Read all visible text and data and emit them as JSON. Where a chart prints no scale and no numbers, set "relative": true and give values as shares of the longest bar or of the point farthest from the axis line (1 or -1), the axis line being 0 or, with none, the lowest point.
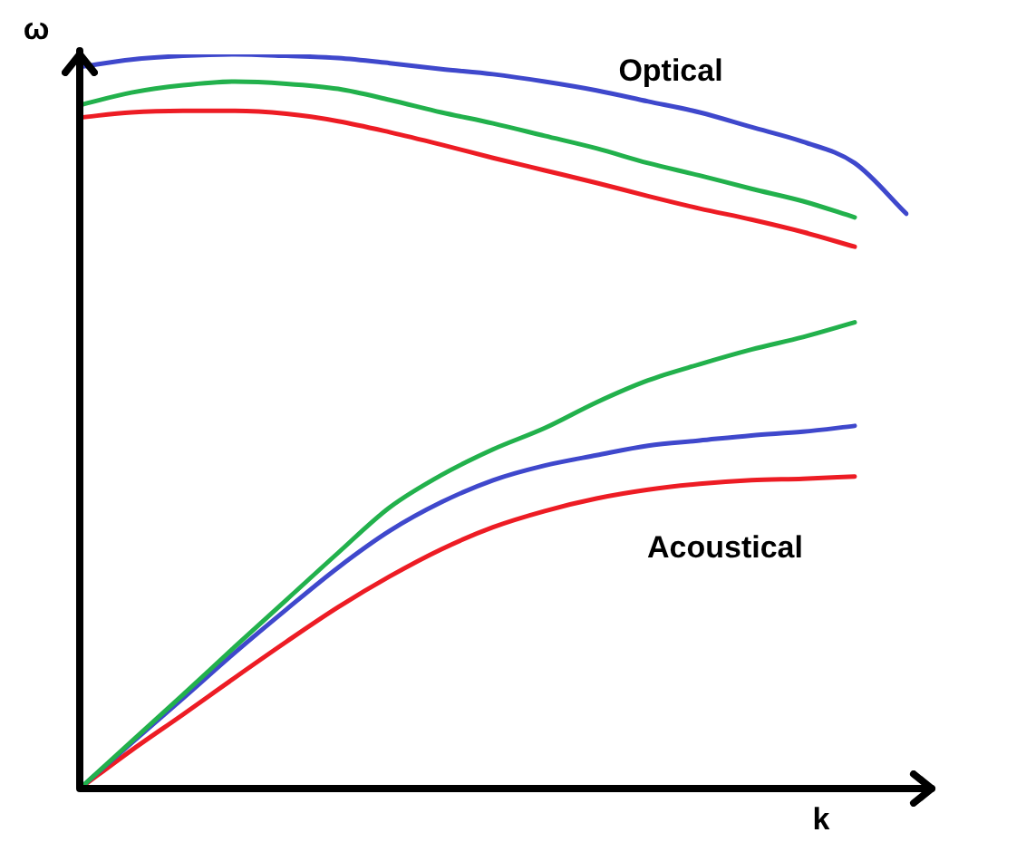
{
  "chart_data": {
    "type": "line",
    "relative": true,
    "xlabel": "k",
    "ylabel": "ω",
    "annotations": [
      "Optical",
      "Acoustical"
    ],
    "legend": false,
    "marker": "none",
    "line_style": "solid",
    "categories": [
      null,
      null,
      null,
      null,
      null,
      null,
      null,
      null,
      null,
      null,
      null,
      null,
      null,
      null,
      null,
      null,
      null
    ],
    "series": [
      {
        "color": "#3f48cc",
        "values": [
          0.983,
          0.993,
          0.998,
          1,
          0.998,
          0.995,
          0.988,
          0.98,
          0.973,
          0.963,
          0.951,
          0.936,
          0.921,
          0.901,
          0.881,
          0.852,
          0.783
        ]
      },
      {
        "color": "#22b14c",
        "values": [
          0.931,
          0.948,
          0.958,
          0.963,
          0.96,
          0.953,
          0.938,
          0.921,
          0.906,
          0.889,
          0.872,
          0.852,
          0.835,
          0.817,
          0.8,
          0.778,
          null
        ]
      },
      {
        "color": "#ed1c24",
        "values": [
          0.914,
          0.921,
          0.923,
          0.923,
          0.919,
          0.909,
          0.894,
          0.877,
          0.859,
          0.842,
          0.825,
          0.807,
          0.79,
          0.775,
          0.758,
          0.738,
          null
        ]
      },
      {
        "color": "#22b14c",
        "values": [
          0,
          0.064,
          0.128,
          0.193,
          0.257,
          0.321,
          0.383,
          0.427,
          0.462,
          0.491,
          0.526,
          0.556,
          0.578,
          0.598,
          0.615,
          0.635,
          null
        ]
      },
      {
        "color": "#3f48cc",
        "values": [
          0,
          0.062,
          0.123,
          0.185,
          0.244,
          0.301,
          0.351,
          0.39,
          0.42,
          0.44,
          0.454,
          0.467,
          0.474,
          0.481,
          0.486,
          0.494,
          null
        ]
      },
      {
        "color": "#ed1c24",
        "values": [
          0,
          0.052,
          0.101,
          0.151,
          0.2,
          0.247,
          0.289,
          0.326,
          0.356,
          0.378,
          0.395,
          0.407,
          0.415,
          0.42,
          0.422,
          0.425,
          null
        ]
      }
    ]
  }
}
